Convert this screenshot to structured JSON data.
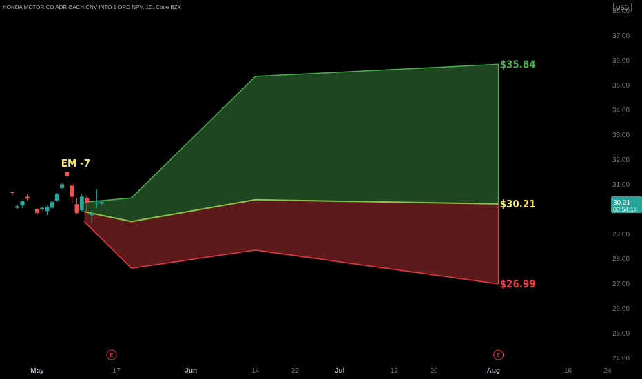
{
  "header": {
    "title": "HONDA MOTOR CO ADR-EACH CNV INTO 1 ORD NPV, 1D, Cboe BZX",
    "currency": "USD"
  },
  "chart_data": {
    "type": "area",
    "title": "HONDA MOTOR CO ADR-EACH CNV INTO 1 ORD NPV, 1D, Cboe BZX",
    "y_axis": {
      "min": 23.85,
      "max": 38.3,
      "ticks": [
        "24.00",
        "25.00",
        "26.00",
        "27.00",
        "28.00",
        "29.00",
        "30.00",
        "31.00",
        "32.00",
        "33.00",
        "34.00",
        "35.00",
        "36.00",
        "37.00",
        "38.00"
      ]
    },
    "x_axis": {
      "labels": [
        {
          "text": "May",
          "day": 1
        },
        {
          "text": "17",
          "day": 17
        },
        {
          "text": "Jun",
          "day": 32
        },
        {
          "text": "14",
          "day": 45
        },
        {
          "text": "22",
          "day": 53
        },
        {
          "text": "Jul",
          "day": 62
        },
        {
          "text": "12",
          "day": 73
        },
        {
          "text": "20",
          "day": 81
        },
        {
          "text": "Aug",
          "day": 93
        },
        {
          "text": "16",
          "day": 108
        },
        {
          "text": "24",
          "day": 116
        }
      ]
    },
    "earnings_markers": [
      {
        "label": "E",
        "day": 16
      },
      {
        "label": "E",
        "day": 94
      }
    ],
    "candles": [
      {
        "d": -4,
        "o": 30.68,
        "h": 30.72,
        "l": 30.55,
        "c": 30.65
      },
      {
        "d": -3,
        "o": 30.05,
        "h": 30.15,
        "l": 30.0,
        "c": 30.12
      },
      {
        "d": -2,
        "o": 30.15,
        "h": 30.35,
        "l": 30.05,
        "c": 30.32
      },
      {
        "d": -1,
        "o": 30.5,
        "h": 30.6,
        "l": 30.35,
        "c": 30.42
      },
      {
        "d": 1,
        "o": 30.0,
        "h": 30.05,
        "l": 29.78,
        "c": 29.85
      },
      {
        "d": 2,
        "o": 30.0,
        "h": 30.1,
        "l": 29.95,
        "c": 30.05
      },
      {
        "d": 3,
        "o": 29.92,
        "h": 30.15,
        "l": 29.75,
        "c": 30.1
      },
      {
        "d": 4,
        "o": 30.05,
        "h": 30.35,
        "l": 30.0,
        "c": 30.3
      },
      {
        "d": 5,
        "o": 30.35,
        "h": 30.65,
        "l": 30.3,
        "c": 30.6
      },
      {
        "d": 6,
        "o": 30.85,
        "h": 31.05,
        "l": 30.8,
        "c": 31.0
      },
      {
        "d": 7,
        "o": 31.5,
        "h": 31.5,
        "l": 31.3,
        "c": 31.32
      },
      {
        "d": 8,
        "o": 30.95,
        "h": 31.05,
        "l": 30.25,
        "c": 30.5
      },
      {
        "d": 9,
        "o": 30.2,
        "h": 30.45,
        "l": 29.8,
        "c": 29.85
      },
      {
        "d": 10,
        "o": 29.95,
        "h": 30.6,
        "l": 29.9,
        "c": 30.5
      },
      {
        "d": 11,
        "o": 30.45,
        "h": 30.55,
        "l": 29.85,
        "c": 30.25
      },
      {
        "d": 12,
        "o": 29.75,
        "h": 29.95,
        "l": 29.45,
        "c": 29.85
      },
      {
        "d": 13,
        "o": 30.25,
        "h": 30.8,
        "l": 30.05,
        "c": 30.25
      },
      {
        "d": 14,
        "o": 30.22,
        "h": 30.35,
        "l": 30.15,
        "c": 30.3
      }
    ],
    "bands": {
      "upper": [
        {
          "day": 10.5,
          "value": 30.28
        },
        {
          "day": 20,
          "value": 30.45
        },
        {
          "day": 45,
          "value": 35.35
        },
        {
          "day": 94,
          "value": 35.84
        }
      ],
      "middle": [
        {
          "day": 10.5,
          "value": 29.9
        },
        {
          "day": 20,
          "value": 29.5
        },
        {
          "day": 45,
          "value": 30.38
        },
        {
          "day": 94,
          "value": 30.21
        }
      ],
      "lower": [
        {
          "day": 10.5,
          "value": 29.5
        },
        {
          "day": 20,
          "value": 27.62
        },
        {
          "day": 45,
          "value": 28.35
        },
        {
          "day": 94,
          "value": 26.99
        }
      ]
    },
    "annotations": [
      {
        "text": "EM -7",
        "day": 7.5,
        "value": 31.85,
        "color": "#f5e663"
      },
      {
        "text": "$35.84",
        "day": 94,
        "value": 35.84,
        "color": "#4caf50"
      },
      {
        "text": "$30.21",
        "day": 94,
        "value": 30.21,
        "color": "#f5e663"
      },
      {
        "text": "$26.99",
        "day": 94,
        "value": 26.99,
        "color": "#f23645"
      }
    ],
    "price_label": {
      "text": "30.21",
      "countdown": "03:54:14",
      "value": 30.21
    }
  },
  "colors": {
    "up": "#26a69a",
    "down": "#ef5350",
    "upper_fill": "#1e4620",
    "lower_fill": "#5c1a1a",
    "upper_line": "#4caf50",
    "lower_line": "#f23645",
    "middle_line": "#8bc34a"
  }
}
